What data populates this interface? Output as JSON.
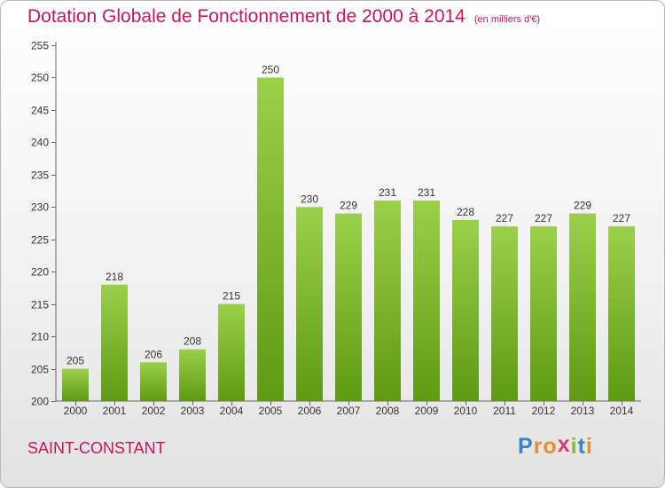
{
  "header": {
    "title": "Dotation Globale de Fonctionnement de 2000 à 2014",
    "unit": "(en milliers d'€)"
  },
  "footer": {
    "city": "SAINT-CONSTANT",
    "logo": "Proxiti"
  },
  "colors": {
    "accent": "#c2185b",
    "bar_top": "#9ccf4c",
    "bar_bottom": "#5e9a14"
  },
  "chart_data": {
    "type": "bar",
    "categories": [
      "2000",
      "2001",
      "2002",
      "2003",
      "2004",
      "2005",
      "2006",
      "2007",
      "2008",
      "2009",
      "2010",
      "2011",
      "2012",
      "2013",
      "2014"
    ],
    "values": [
      205,
      218,
      206,
      208,
      215,
      250,
      230,
      229,
      231,
      231,
      228,
      227,
      227,
      229,
      227
    ],
    "title": "Dotation Globale de Fonctionnement de 2000 à 2014",
    "ylim": [
      200,
      255
    ],
    "yticks": [
      200,
      205,
      210,
      215,
      220,
      225,
      230,
      235,
      240,
      245,
      250,
      255
    ],
    "grid": false,
    "data_labels": true
  }
}
